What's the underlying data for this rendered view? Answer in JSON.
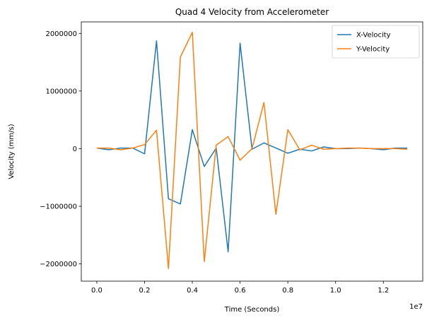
{
  "chart_data": {
    "type": "line",
    "title": "Quad 4 Velocity from Accelerometer",
    "xlabel": "Time (Seconds)",
    "ylabel": "Velocity (mm/s)",
    "x_offset_label": "1e7",
    "xlim": [
      -0.065,
      1.365
    ],
    "ylim": [
      -2300000,
      2200000
    ],
    "x_ticks": [
      0.0,
      0.2,
      0.4,
      0.6,
      0.8,
      1.0,
      1.2
    ],
    "x_tick_labels": [
      "0.0",
      "0.2",
      "0.4",
      "0.6",
      "0.8",
      "1.0",
      "1.2"
    ],
    "y_ticks": [
      -2000000,
      -1000000,
      0,
      1000000,
      2000000
    ],
    "y_tick_labels": [
      "−2000000",
      "−1000000",
      "0",
      "1000000",
      "2000000"
    ],
    "legend_position": "top-right",
    "grid": false,
    "x": [
      0.0,
      0.05,
      0.1,
      0.15,
      0.2,
      0.25,
      0.3,
      0.35,
      0.4,
      0.45,
      0.5,
      0.55,
      0.6,
      0.65,
      0.7,
      0.75,
      0.8,
      0.85,
      0.9,
      0.95,
      1.0,
      1.05,
      1.1,
      1.15,
      1.2,
      1.25,
      1.3
    ],
    "series": [
      {
        "name": "X-Velocity",
        "color": "#1f77b4",
        "values": [
          10000,
          -20000,
          10000,
          10000,
          -90000,
          1870000,
          -870000,
          -960000,
          330000,
          -310000,
          10000,
          -1790000,
          1830000,
          -10000,
          100000,
          10000,
          -80000,
          -10000,
          -40000,
          30000,
          0,
          0,
          10000,
          0,
          -20000,
          10000,
          10000
        ]
      },
      {
        "name": "Y-Velocity",
        "color": "#ff7f0e",
        "values": [
          10000,
          10000,
          -20000,
          10000,
          70000,
          320000,
          -2080000,
          1590000,
          2020000,
          -1960000,
          60000,
          210000,
          -200000,
          0,
          800000,
          -1140000,
          330000,
          -20000,
          60000,
          -10000,
          0,
          10000,
          10000,
          0,
          0,
          0,
          -10000
        ]
      }
    ]
  }
}
